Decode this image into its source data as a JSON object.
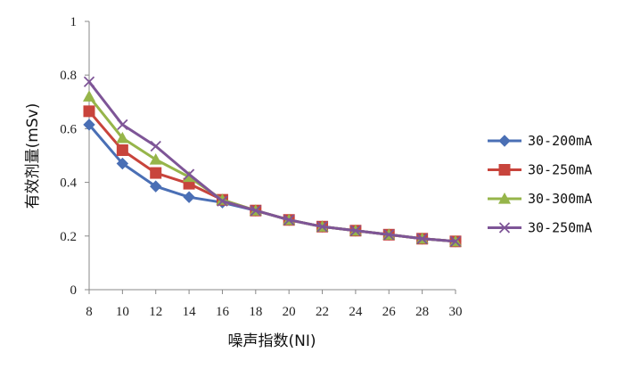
{
  "chart_data": {
    "type": "line",
    "xlabel": "噪声指数(NI)",
    "ylabel": "有效剂量(mSv)",
    "x": [
      8,
      10,
      12,
      14,
      16,
      18,
      20,
      22,
      24,
      26,
      28,
      30
    ],
    "ylim": [
      0,
      1
    ],
    "yticks": [
      "0",
      "0.2",
      "0.4",
      "0.6",
      "0.8",
      "1"
    ],
    "ytick_values": [
      0,
      0.2,
      0.4,
      0.6,
      0.8,
      1
    ],
    "grid": false,
    "legend": "right",
    "series": [
      {
        "name": "30-200mA",
        "color": "#4a6fb5",
        "marker": "diamond",
        "values": [
          0.615,
          0.47,
          0.385,
          0.345,
          0.325,
          0.295,
          0.26,
          0.235,
          0.22,
          0.205,
          0.19,
          0.18
        ]
      },
      {
        "name": "30-250mA",
        "color": "#c8443c",
        "marker": "square",
        "values": [
          0.665,
          0.52,
          0.435,
          0.395,
          0.335,
          0.295,
          0.26,
          0.235,
          0.22,
          0.205,
          0.19,
          0.18
        ]
      },
      {
        "name": "30-300mA",
        "color": "#96b54a",
        "marker": "triangle",
        "values": [
          0.72,
          0.565,
          0.485,
          0.42,
          0.335,
          0.295,
          0.26,
          0.235,
          0.22,
          0.205,
          0.19,
          0.18
        ]
      },
      {
        "name": "30-250mA",
        "color": "#7e5597",
        "marker": "x",
        "values": [
          0.775,
          0.615,
          0.535,
          0.43,
          0.33,
          0.295,
          0.26,
          0.235,
          0.22,
          0.205,
          0.19,
          0.18
        ]
      }
    ]
  }
}
